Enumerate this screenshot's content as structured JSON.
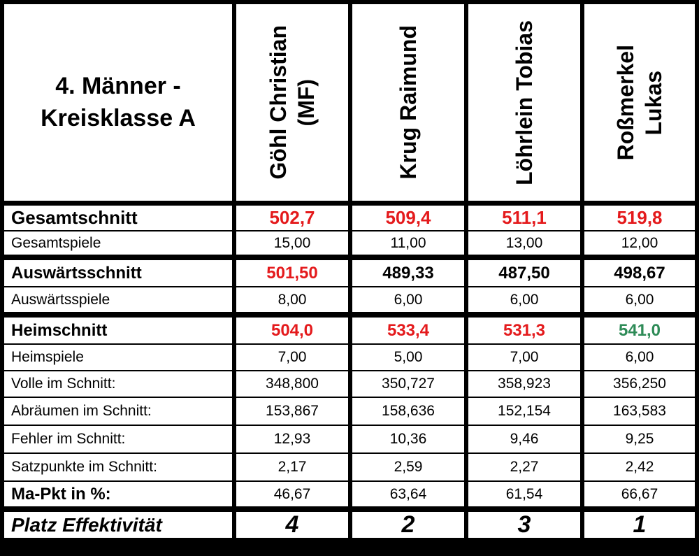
{
  "header": {
    "title": "4. Männer -\nKreisklasse A",
    "players": [
      "Göhl Christian\n(MF)",
      "Krug Raimund",
      "Löhrlein Tobias",
      "Roßmerkel\nLukas"
    ]
  },
  "rows": [
    {
      "label": "Gesamtschnitt",
      "values": [
        "502,7",
        "509,4",
        "511,1",
        "519,8"
      ]
    },
    {
      "label": "Gesamtspiele",
      "values": [
        "15,00",
        "11,00",
        "13,00",
        "12,00"
      ]
    },
    {
      "label": "Auswärtsschnitt",
      "values": [
        "501,50",
        "489,33",
        "487,50",
        "498,67"
      ]
    },
    {
      "label": "Auswärtsspiele",
      "values": [
        "8,00",
        "6,00",
        "6,00",
        "6,00"
      ]
    },
    {
      "label": "Heimschnitt",
      "values": [
        "504,0",
        "533,4",
        "531,3",
        "541,0"
      ]
    },
    {
      "label": "Heimspiele",
      "values": [
        "7,00",
        "5,00",
        "7,00",
        "6,00"
      ]
    },
    {
      "label": "Volle im Schnitt:",
      "values": [
        "348,800",
        "350,727",
        "358,923",
        "356,250"
      ]
    },
    {
      "label": "Abräumen im Schnitt:",
      "values": [
        "153,867",
        "158,636",
        "152,154",
        "163,583"
      ]
    },
    {
      "label": "Fehler im Schnitt:",
      "values": [
        "12,93",
        "10,36",
        "9,46",
        "9,25"
      ]
    },
    {
      "label": "Satzpunkte im Schnitt:",
      "values": [
        "2,17",
        "2,59",
        "2,27",
        "2,42"
      ]
    },
    {
      "label": "Ma-Pkt in %:",
      "values": [
        "46,67",
        "63,64",
        "61,54",
        "66,67"
      ]
    },
    {
      "label": "Platz Effektivität",
      "values": [
        "4",
        "2",
        "3",
        "1"
      ]
    }
  ],
  "colors": {
    "highlight_red": "#e41a1c",
    "highlight_green": "#2e8b57"
  }
}
